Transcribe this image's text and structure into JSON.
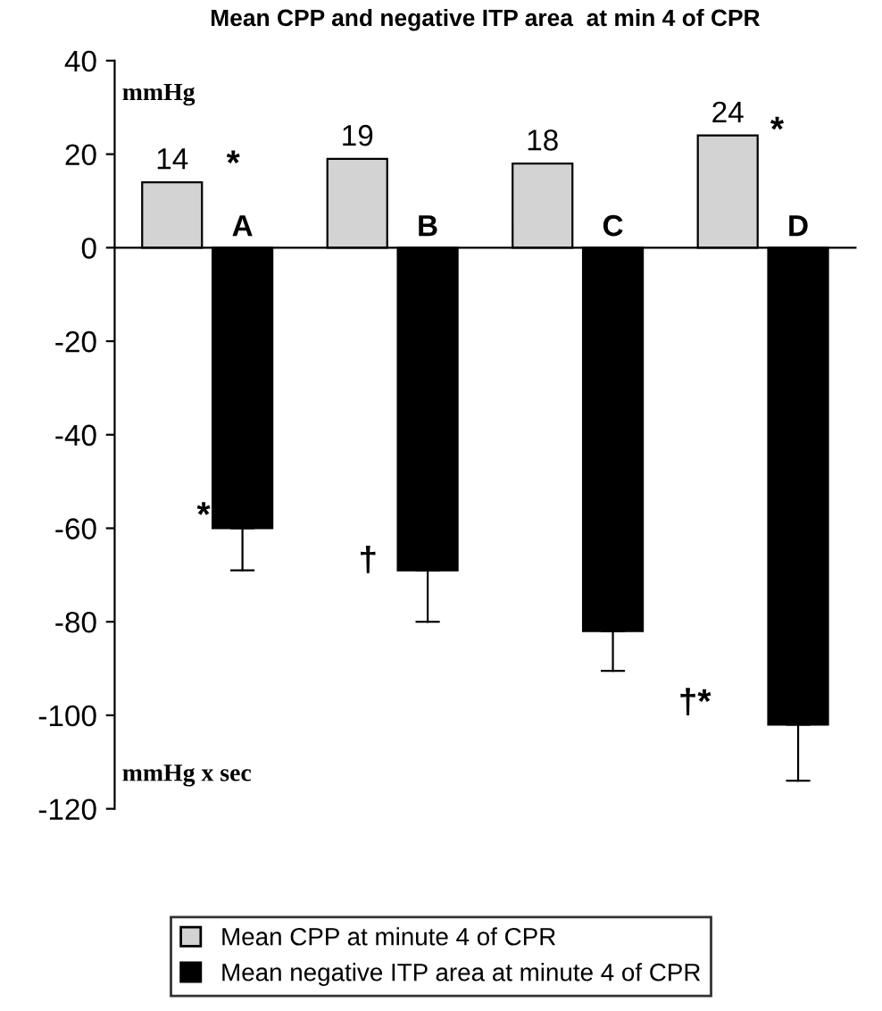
{
  "chart_data": {
    "type": "bar",
    "title": "Mean CPP and negative ITP area  at min 4 of CPR",
    "categories": [
      "A",
      "B",
      "C",
      "D"
    ],
    "series": [
      {
        "name": "Mean CPP at minute 4 of CPR",
        "color": "#d3d3d3",
        "values": [
          14,
          19,
          18,
          24
        ],
        "value_labels": [
          "14",
          "19",
          "18",
          "24"
        ]
      },
      {
        "name": "Mean negative ITP area at minute 4 of CPR",
        "color": "#000000",
        "values": [
          -60,
          -69,
          -82,
          -102
        ],
        "errors": [
          [
            -69,
            -60
          ],
          [
            -80,
            -69
          ],
          [
            -90.5,
            -82
          ],
          [
            -114,
            -102
          ]
        ]
      }
    ],
    "ylim": [
      -120,
      40
    ],
    "yticks": [
      -120,
      -100,
      -80,
      -60,
      -40,
      -20,
      0,
      20,
      40
    ],
    "grid": false,
    "legend": "bottom",
    "annotations": [
      "mmHg",
      "mmHg x sec",
      "*",
      "*",
      "†",
      "*",
      "†*"
    ]
  }
}
